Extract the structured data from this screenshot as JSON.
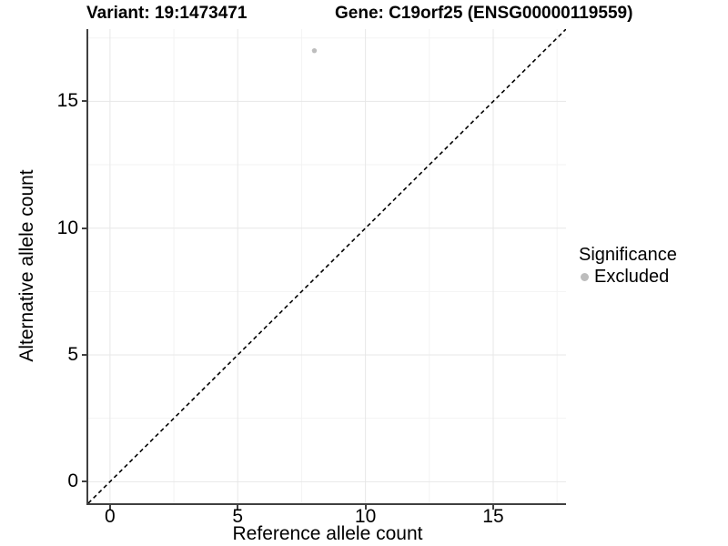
{
  "chart_data": {
    "type": "scatter",
    "titles": [
      "Variant: 19:1473471",
      "Gene: C19orf25 (ENSG00000119559)"
    ],
    "xlabel": "Reference allele count",
    "ylabel": "Alternative allele count",
    "xlim": [
      -0.85,
      17.85
    ],
    "ylim": [
      -0.85,
      17.85
    ],
    "x_ticks": [
      0,
      5,
      10,
      15
    ],
    "y_ticks": [
      0,
      5,
      10,
      15
    ],
    "x_minor_ticks": [
      2.5,
      7.5,
      12.5,
      17.5
    ],
    "y_minor_ticks": [
      2.5,
      7.5,
      12.5,
      17.5
    ],
    "grid": {
      "major": true,
      "minor": true,
      "major_color": "#e7e7e7",
      "minor_color": "#f3f3f3"
    },
    "series": [
      {
        "name": "Excluded",
        "color": "#bdbdbd",
        "points": [
          {
            "x": 8,
            "y": 17
          }
        ]
      }
    ],
    "reference_line": {
      "type": "identity",
      "slope": 1,
      "intercept": 0,
      "style": "dashed",
      "color": "#000000"
    },
    "legend": {
      "title": "Significance",
      "position": "right",
      "entries": [
        {
          "label": "Excluded",
          "color": "#bdbdbd"
        }
      ]
    }
  }
}
